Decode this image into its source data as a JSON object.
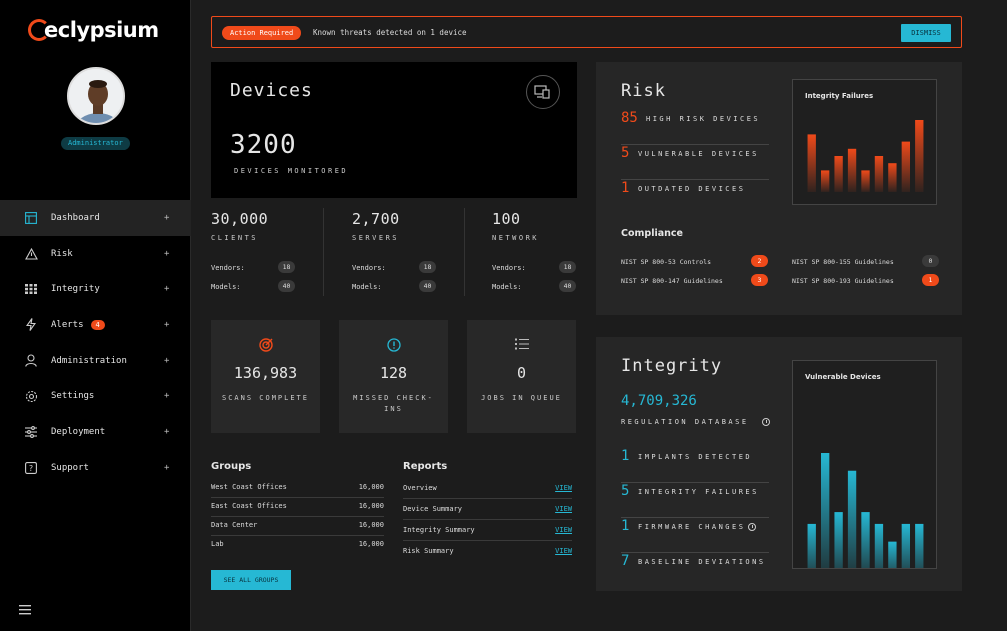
{
  "brand": {
    "name": "eclypsium",
    "accent": "#f04a1a",
    "secondary": "#26b8d4"
  },
  "user": {
    "role": "Administrator"
  },
  "sidebar": {
    "items": [
      {
        "label": "Dashboard",
        "icon": "dashboard-icon",
        "active": true
      },
      {
        "label": "Risk",
        "icon": "warning-icon"
      },
      {
        "label": "Integrity",
        "icon": "grid-icon"
      },
      {
        "label": "Alerts",
        "icon": "bolt-icon",
        "badge": "4"
      },
      {
        "label": "Administration",
        "icon": "user-icon"
      },
      {
        "label": "Settings",
        "icon": "gear-icon"
      },
      {
        "label": "Deployment",
        "icon": "sliders-icon"
      },
      {
        "label": "Support",
        "icon": "help-icon"
      }
    ],
    "expand_glyph": "+"
  },
  "alert": {
    "tag": "Action Required",
    "message": "Known threats detected on 1 device",
    "dismiss": "DISMISS"
  },
  "devices": {
    "title": "Devices",
    "count": "3200",
    "label": "DEVICES MONITORED",
    "icon": "devices-icon",
    "breakdown": [
      {
        "value": "30,000",
        "label": "CLIENTS",
        "vendors_label": "Vendors:",
        "vendors": "18",
        "models_label": "Models:",
        "models": "40"
      },
      {
        "value": "2,700",
        "label": "SERVERS",
        "vendors_label": "Vendors:",
        "vendors": "18",
        "models_label": "Models:",
        "models": "40"
      },
      {
        "value": "100",
        "label": "NETWORK",
        "vendors_label": "Vendors:",
        "vendors": "18",
        "models_label": "Models:",
        "models": "40"
      }
    ]
  },
  "tiles": [
    {
      "icon": "target-icon",
      "value": "136,983",
      "label": "SCANS COMPLETE"
    },
    {
      "icon": "alert-circle-icon",
      "value": "128",
      "label": "MISSED CHECK-INS"
    },
    {
      "icon": "list-icon",
      "value": "0",
      "label": "JOBS IN QUEUE"
    }
  ],
  "groups": {
    "title": "Groups",
    "rows": [
      {
        "name": "West Coast Offices",
        "value": "16,000"
      },
      {
        "name": "East Coast Offices",
        "value": "16,000"
      },
      {
        "name": "Data Center",
        "value": "16,000"
      },
      {
        "name": "Lab",
        "value": "16,000"
      }
    ],
    "button": "SEE ALL GROUPS"
  },
  "reports": {
    "title": "Reports",
    "rows": [
      {
        "name": "Overview",
        "link": "VIEW"
      },
      {
        "name": "Device Summary",
        "link": "VIEW"
      },
      {
        "name": "Integrity Summary",
        "link": "VIEW"
      },
      {
        "name": "Risk Summary",
        "link": "VIEW"
      }
    ]
  },
  "risk": {
    "title": "Risk",
    "rows": [
      {
        "value": "85",
        "label": "HIGH RISK DEVICES"
      },
      {
        "value": "5",
        "label": "VULNERABLE DEVICES"
      },
      {
        "value": "1",
        "label": "OUTDATED DEVICES"
      }
    ],
    "compliance": {
      "title": "Compliance",
      "items": [
        {
          "name": "NIST SP 800-53 Controls",
          "count": "2",
          "status": "alert"
        },
        {
          "name": "NIST SP 800-155 Guidelines",
          "count": "0",
          "status": "ok"
        },
        {
          "name": "NIST SP 800-147 Guidelines",
          "count": "3",
          "status": "alert"
        },
        {
          "name": "NIST SP 800-193 Guidelines",
          "count": "1",
          "status": "alert"
        }
      ]
    }
  },
  "integrity": {
    "title": "Integrity",
    "regulation_value": "4,709,326",
    "regulation_label": "REGULATION DATABASE",
    "rows": [
      {
        "value": "1",
        "label": "IMPLANTS DETECTED"
      },
      {
        "value": "5",
        "label": "INTEGRITY FAILURES"
      },
      {
        "value": "1",
        "label": "FIRMWARE CHANGES"
      },
      {
        "value": "7",
        "label": "BASELINE DEVIATIONS"
      }
    ]
  },
  "chart_data": [
    {
      "type": "bar",
      "title": "Integrity Failures",
      "values": [
        8,
        3,
        5,
        6,
        3,
        5,
        4,
        7,
        10
      ],
      "color": "#f04a1a",
      "ylim": [
        0,
        10
      ]
    },
    {
      "type": "bar",
      "title": "Vulnerable Devices",
      "values": [
        5,
        11,
        6,
        9.5,
        6,
        5,
        3.5,
        5,
        5
      ],
      "color": "#26b8d4",
      "ylim": [
        0,
        11
      ]
    }
  ]
}
